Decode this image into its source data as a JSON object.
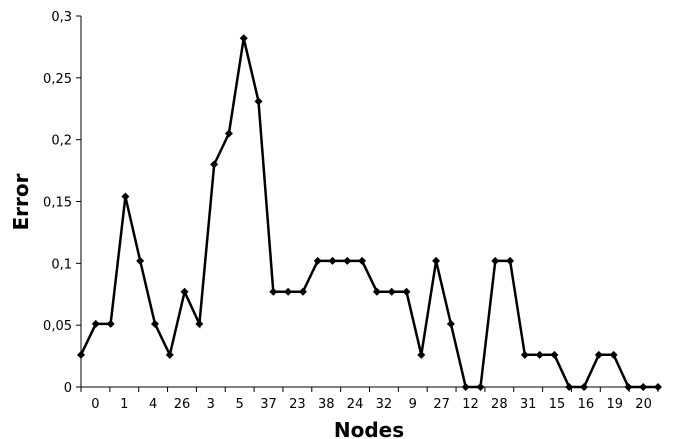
{
  "chart_data": {
    "type": "line",
    "xlabel": "Nodes",
    "ylabel": "Error",
    "ylim": [
      0,
      0.3
    ],
    "y_ticks": [
      "0",
      "0,05",
      "0,1",
      "0,15",
      "0,2",
      "0,25",
      "0,3"
    ],
    "x_tick_labels": [
      "0",
      "1",
      "4",
      "26",
      "3",
      "5",
      "37",
      "23",
      "38",
      "24",
      "32",
      "9",
      "27",
      "12",
      "28",
      "31",
      "15",
      "16",
      "19",
      "20"
    ],
    "legend": "none",
    "grid": false,
    "series": [
      {
        "color": "#000000",
        "marker": "diamond",
        "values": [
          0.026,
          0.051,
          0.051,
          0.154,
          0.102,
          0.051,
          0.026,
          0.077,
          0.051,
          0.18,
          0.205,
          0.282,
          0.231,
          0.077,
          0.077,
          0.077,
          0.102,
          0.102,
          0.102,
          0.102,
          0.077,
          0.077,
          0.077,
          0.026,
          0.102,
          0.051,
          0.0,
          0.0,
          0.102,
          0.102,
          0.026,
          0.026,
          0.026,
          0.0,
          0.0,
          0.026,
          0.026,
          0.0,
          0.0,
          0.0
        ]
      }
    ]
  }
}
